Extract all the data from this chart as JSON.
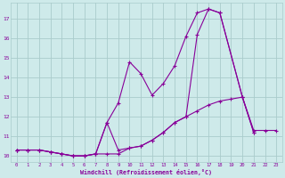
{
  "background_color": "#ceeaea",
  "grid_color": "#aacccc",
  "line_color": "#880099",
  "xlabel": "Windchill (Refroidissement éolien,°C)",
  "xlim": [
    -0.5,
    23.5
  ],
  "ylim": [
    9.7,
    17.8
  ],
  "yticks": [
    10,
    11,
    12,
    13,
    14,
    15,
    16,
    17
  ],
  "xticks": [
    0,
    1,
    2,
    3,
    4,
    5,
    6,
    7,
    8,
    9,
    10,
    11,
    12,
    13,
    14,
    15,
    16,
    17,
    18,
    19,
    20,
    21,
    22,
    23
  ],
  "line1_x": [
    0,
    1,
    2,
    3,
    4,
    5,
    6,
    7,
    8,
    9,
    10,
    11,
    12,
    13,
    14,
    15,
    16,
    17,
    18,
    19,
    20,
    21,
    22,
    23
  ],
  "line1_y": [
    10.3,
    10.3,
    10.3,
    10.2,
    10.1,
    10.0,
    10.0,
    10.1,
    10.1,
    10.1,
    10.4,
    10.5,
    10.8,
    11.2,
    11.7,
    12.0,
    12.3,
    12.6,
    12.8,
    12.9,
    13.0,
    11.3,
    11.3,
    11.3
  ],
  "line2_x": [
    0,
    1,
    2,
    3,
    4,
    5,
    6,
    7,
    8,
    9,
    10,
    11,
    12,
    13,
    14,
    15,
    16,
    17,
    18,
    20,
    21
  ],
  "line2_y": [
    10.3,
    10.3,
    10.3,
    10.2,
    10.1,
    10.0,
    10.0,
    10.1,
    11.7,
    12.7,
    14.8,
    14.2,
    13.1,
    13.7,
    14.6,
    16.1,
    17.3,
    17.5,
    17.3,
    13.0,
    11.2
  ],
  "line3_x": [
    0,
    1,
    2,
    3,
    4,
    5,
    6,
    7,
    8,
    9,
    10,
    11,
    12,
    13,
    14,
    15,
    16,
    17,
    18,
    20,
    21
  ],
  "line3_y": [
    10.3,
    10.3,
    10.3,
    10.2,
    10.1,
    10.0,
    10.0,
    10.1,
    11.7,
    10.3,
    10.4,
    10.5,
    10.8,
    11.2,
    11.7,
    12.0,
    16.2,
    17.5,
    17.3,
    13.0,
    11.2
  ]
}
